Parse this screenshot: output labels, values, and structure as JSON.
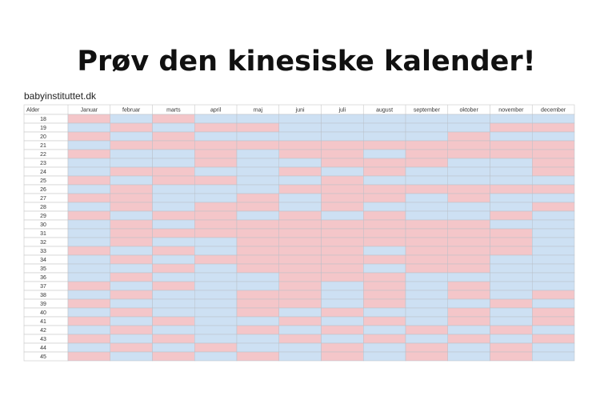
{
  "header": {
    "title": "Prøv den kinesiske kalender!",
    "source": "babyinstituttet.dk"
  },
  "table": {
    "corner": "Alder",
    "months": [
      "Januar",
      "februar",
      "marts",
      "april",
      "maj",
      "juni",
      "juli",
      "august",
      "september",
      "oktober",
      "november",
      "december"
    ],
    "colors": {
      "G": "#f4c6c9",
      "B": "#cde0f3"
    },
    "rows": [
      {
        "age": 18,
        "cells": "GBGBBBBBBBBB"
      },
      {
        "age": 19,
        "cells": "BGBGGBBBBBGG"
      },
      {
        "age": 20,
        "cells": "GBGBBBBBBGBB"
      },
      {
        "age": 21,
        "cells": "BGGGGGGGGGGG"
      },
      {
        "age": 22,
        "cells": "GBBGBGGBGGGG"
      },
      {
        "age": 23,
        "cells": "BBBGBBGGGBBG"
      },
      {
        "age": 24,
        "cells": "BGGBBGBGBBBG"
      },
      {
        "age": 25,
        "cells": "GBGGBBGBBBBB"
      },
      {
        "age": 26,
        "cells": "BGBBBGGGGGGG"
      },
      {
        "age": 27,
        "cells": "GGBBGBGGBGBB"
      },
      {
        "age": 28,
        "cells": "BGBGGBGBBBBG"
      },
      {
        "age": 29,
        "cells": "GBGGBGBGBBGB"
      },
      {
        "age": 30,
        "cells": "BGBGGGGGGGBB"
      },
      {
        "age": 31,
        "cells": "BGGGGGGGGGGB"
      },
      {
        "age": 32,
        "cells": "BGBBGGGGGGGB"
      },
      {
        "age": 33,
        "cells": "GBGBGGGBGGGB"
      },
      {
        "age": 34,
        "cells": "BGBGGGGGGGBB"
      },
      {
        "age": 35,
        "cells": "BBGBGGGBGGBB"
      },
      {
        "age": 36,
        "cells": "BGBBBGGGBBBB"
      },
      {
        "age": 37,
        "cells": "GBGBBGBGBGBB"
      },
      {
        "age": 38,
        "cells": "BGBBGGBGBGBG"
      },
      {
        "age": 39,
        "cells": "GBBBGGBGBBGB"
      },
      {
        "age": 40,
        "cells": "BGBBGBGBBGBG"
      },
      {
        "age": 41,
        "cells": "GBGBBGBGBGBG"
      },
      {
        "age": 42,
        "cells": "BGBBGBGBGBGB"
      },
      {
        "age": 43,
        "cells": "GBGBBGBGBGBG"
      },
      {
        "age": 44,
        "cells": "BGBGBBGBGBGB"
      },
      {
        "age": 45,
        "cells": "GBGBGBGBGBGB"
      }
    ]
  }
}
